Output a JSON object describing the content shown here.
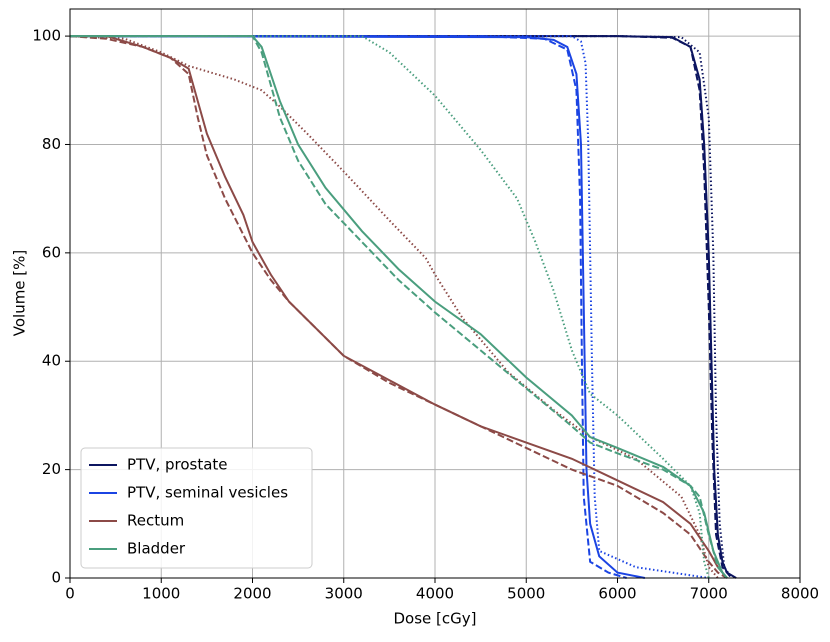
{
  "chart_data": {
    "type": "line",
    "x_label": "Dose [cGy]",
    "y_label": "Volume [%]",
    "xlim": [
      0,
      8000
    ],
    "ylim": [
      0,
      105
    ],
    "xticks": [
      0,
      1000,
      2000,
      3000,
      4000,
      5000,
      6000,
      7000,
      8000
    ],
    "yticks": [
      0,
      20,
      40,
      60,
      80,
      100
    ],
    "grid": true,
    "legend": "lower left",
    "series": [
      {
        "name": "PTV, prostate",
        "color": "#0c1560",
        "lines": [
          {
            "style": "solid",
            "x": [
              0,
              6000,
              6600,
              6800,
              6900,
              6950,
              7000,
              7030,
              7060,
              7100,
              7150,
              7200,
              7300
            ],
            "values": [
              100,
              100,
              99.8,
              98,
              92,
              80,
              60,
              40,
              20,
              8,
              3,
              1,
              0
            ]
          },
          {
            "style": "dashed",
            "x": [
              0,
              6000,
              6600,
              6800,
              6900,
              6950,
              7000,
              7040,
              7080,
              7150,
              7250
            ],
            "values": [
              100,
              100,
              99.7,
              98,
              90,
              75,
              50,
              25,
              8,
              2,
              0
            ]
          },
          {
            "style": "dotted",
            "x": [
              0,
              6000,
              6700,
              6900,
              7000,
              7050,
              7080,
              7120,
              7170,
              7250
            ],
            "values": [
              100,
              100,
              99.8,
              97,
              85,
              60,
              30,
              10,
              2,
              0
            ]
          }
        ]
      },
      {
        "name": "PTV, seminal vesicles",
        "color": "#1b44e3",
        "lines": [
          {
            "style": "solid",
            "x": [
              0,
              5000,
              5300,
              5450,
              5550,
              5600,
              5620,
              5640,
              5660,
              5700,
              5800,
              6000,
              6300
            ],
            "values": [
              100,
              99.8,
              99.3,
              98,
              93,
              80,
              60,
              40,
              20,
              10,
              4,
              1,
              0
            ]
          },
          {
            "style": "dashed",
            "x": [
              0,
              4500,
              5200,
              5450,
              5550,
              5590,
              5610,
              5630,
              5700,
              5900,
              6100
            ],
            "values": [
              100,
              100,
              99.5,
              97.5,
              90,
              70,
              40,
              15,
              3,
              1,
              0
            ]
          },
          {
            "style": "dotted",
            "x": [
              0,
              5500,
              5600,
              5650,
              5680,
              5700,
              5720,
              5750,
              5800,
              6200,
              7000
            ],
            "values": [
              100,
              100,
              99,
              95,
              80,
              60,
              40,
              15,
              5,
              2,
              0
            ]
          }
        ]
      },
      {
        "name": "Rectum",
        "color": "#8c4a47",
        "lines": [
          {
            "style": "solid",
            "x": [
              0,
              400,
              800,
              1100,
              1300,
              1400,
              1500,
              1700,
              1900,
              2000,
              2200,
              2400,
              2700,
              3000,
              3500,
              4000,
              4500,
              5000,
              5500,
              6000,
              6500,
              6800,
              7000,
              7100,
              7200
            ],
            "values": [
              100,
              100,
              98,
              96,
              94,
              88,
              82,
              74,
              67,
              62,
              56,
              51,
              46,
              41,
              36.5,
              32,
              28,
              25,
              22,
              18,
              14,
              10,
              5,
              2,
              0
            ]
          },
          {
            "style": "dashed",
            "x": [
              0,
              400,
              800,
              1100,
              1300,
              1400,
              1500,
              1700,
              2000,
              2200,
              2400,
              2700,
              3000,
              3500,
              4000,
              4500,
              5000,
              5500,
              6000,
              6500,
              6800,
              7000,
              7100,
              7200
            ],
            "values": [
              100,
              99.5,
              98,
              96,
              93,
              85,
              78,
              70,
              60,
              55,
              51,
              46,
              41,
              36,
              32,
              28,
              24,
              20,
              17,
              12,
              8,
              3,
              1,
              0
            ]
          },
          {
            "style": "dotted",
            "x": [
              0,
              600,
              1000,
              1300,
              1800,
              2100,
              2300,
              2600,
              3000,
              3500,
              3900,
              4000,
              4300,
              4800,
              5300,
              5700,
              6200,
              6700,
              6900,
              7000,
              7100
            ],
            "values": [
              100,
              99.5,
              97,
              94.5,
              92,
              90,
              87,
              82,
              75,
              66,
              59,
              56,
              48,
              38,
              31,
              26,
              22,
              15,
              8,
              2,
              0
            ]
          }
        ]
      },
      {
        "name": "Bladder",
        "color": "#4a9e7e",
        "lines": [
          {
            "style": "solid",
            "x": [
              0,
              2000,
              2100,
              2300,
              2500,
              2800,
              3200,
              3600,
              4000,
              4500,
              5000,
              5500,
              5700,
              6000,
              6500,
              6800,
              6950,
              7050,
              7150,
              7200
            ],
            "values": [
              100,
              100,
              98,
              88,
              80,
              72,
              64,
              57,
              51,
              45,
              37,
              30,
              26,
              24,
              20.5,
              17,
              12,
              5,
              1,
              0
            ]
          },
          {
            "style": "dashed",
            "x": [
              0,
              2000,
              2100,
              2300,
              2500,
              2800,
              3200,
              3600,
              4000,
              4500,
              5000,
              5500,
              5700,
              6000,
              6500,
              6800,
              6900,
              7000,
              7100,
              7200
            ],
            "values": [
              100,
              100,
              97,
              85,
              77,
              69,
              62,
              55,
              49,
              42,
              35,
              28,
              25,
              23,
              20,
              17,
              15,
              8,
              2,
              0
            ]
          },
          {
            "style": "dotted",
            "x": [
              0,
              3200,
              3500,
              4000,
              4500,
              4900,
              5100,
              5300,
              5500,
              5700,
              6000,
              6500,
              6800,
              6900,
              6950,
              7000
            ],
            "values": [
              100,
              100,
              97,
              89,
              79,
              70,
              62,
              53,
              42,
              34,
              30,
              22,
              17,
              12,
              3,
              0
            ]
          }
        ]
      }
    ]
  }
}
